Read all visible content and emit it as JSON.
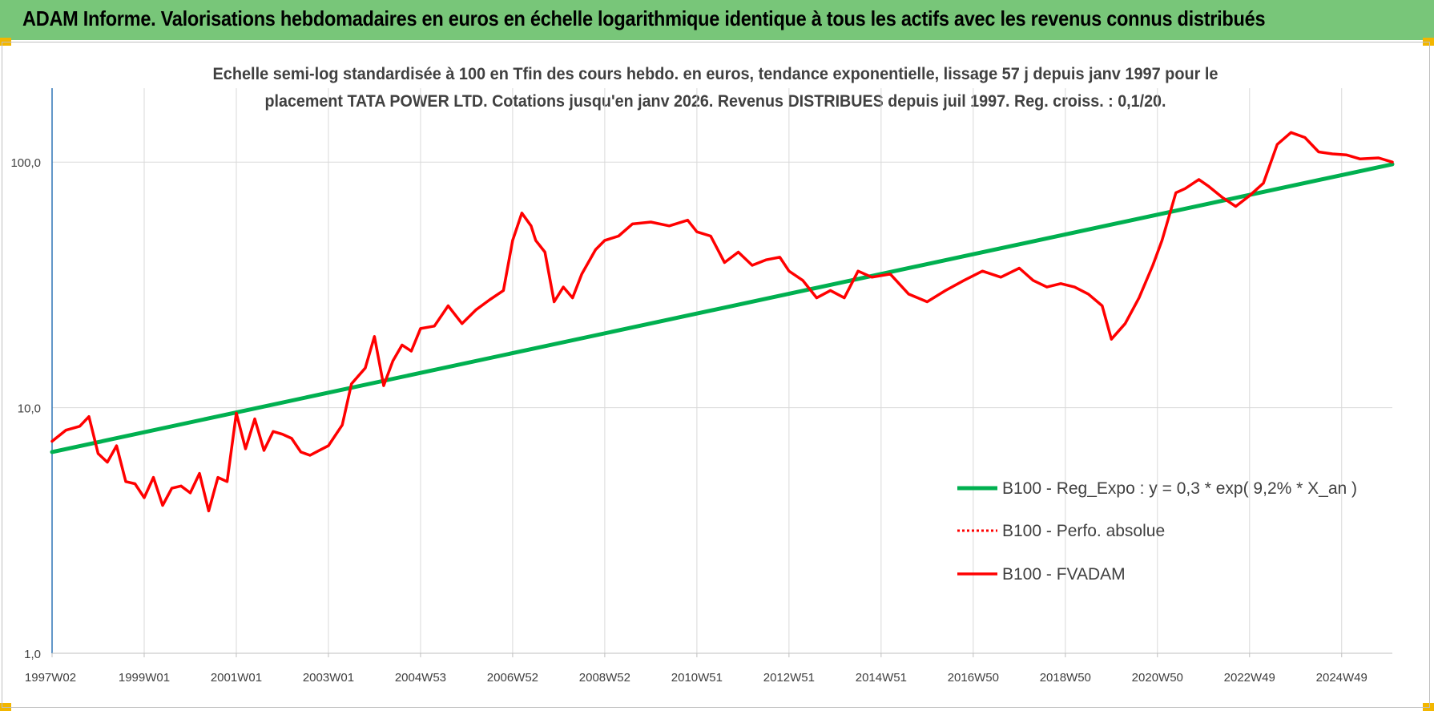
{
  "header": {
    "title": "ADAM Informe. Valorisations hebdomadaires en euros en échelle logarithmique identique à tous les actifs avec les revenus connus distribués"
  },
  "colors": {
    "header_bg": "#78c679",
    "regression_line": "#00b050",
    "price_line": "#ff0000",
    "axis": "#2e75b6",
    "grid": "#d9d9d9",
    "text": "#404040",
    "accent_corner": "#f2b600"
  },
  "chart_data": {
    "type": "line",
    "title_line1": "Echelle semi-log standardisée à 100 en Tfin des cours hebdo. en euros, tendance exponentielle, lissage 57 j depuis janv 1997 pour le",
    "title_line2": "placement TATA  POWER LTD. Cotations jusqu'en janv 2026. Revenus DISTRIBUES depuis juil 1997. Reg. croiss. : 0,1/20.",
    "yscale": "log",
    "ylim": [
      1,
      200
    ],
    "yticks": [
      1,
      10,
      100
    ],
    "ytick_labels": [
      "1,0",
      "10,0",
      "100,0"
    ],
    "xlim": [
      1997.0,
      2026.1
    ],
    "xticks": [
      1997.0,
      1999.0,
      2001.0,
      2003.0,
      2005.0,
      2007.0,
      2009.0,
      2011.0,
      2013.0,
      2015.0,
      2017.0,
      2019.0,
      2021.0,
      2023.0,
      2025.0
    ],
    "xtick_labels": [
      "1997W02",
      "1999W01",
      "2001W01",
      "2003W01",
      "2004W53",
      "2006W52",
      "2008W52",
      "2010W51",
      "2012W51",
      "2014W51",
      "2016W50",
      "2018W50",
      "2020W50",
      "2022W49",
      "2024W49"
    ],
    "grid": true,
    "legend_position": "bottom-right",
    "legend": [
      "B100 - Reg_Expo : y = 0,3 * exp( 9,2% *  X_an )",
      "B100 - Perfo. absolue",
      "B100 - FVADAM"
    ],
    "series": [
      {
        "name": "B100 - Reg_Expo : y = 0,3 * exp( 9,2% *  X_an )",
        "style": "solid-green",
        "x": [
          1997.0,
          2026.1
        ],
        "values": [
          6.6,
          98
        ]
      },
      {
        "name": "B100 - Perfo. absolue",
        "style": "dotted-red",
        "x": [],
        "values": []
      },
      {
        "name": "B100 - FVADAM",
        "style": "solid-red",
        "x": [
          1997.0,
          1997.3,
          1997.6,
          1997.8,
          1998.0,
          1998.2,
          1998.4,
          1998.6,
          1998.8,
          1999.0,
          1999.2,
          1999.4,
          1999.6,
          1999.8,
          2000.0,
          2000.2,
          2000.4,
          2000.6,
          2000.8,
          2001.0,
          2001.2,
          2001.4,
          2001.6,
          2001.8,
          2002.0,
          2002.2,
          2002.4,
          2002.6,
          2002.8,
          2003.0,
          2003.3,
          2003.5,
          2003.8,
          2004.0,
          2004.2,
          2004.4,
          2004.6,
          2004.8,
          2005.0,
          2005.3,
          2005.6,
          2005.9,
          2006.2,
          2006.5,
          2006.8,
          2007.0,
          2007.2,
          2007.4,
          2007.5,
          2007.7,
          2007.9,
          2008.1,
          2008.3,
          2008.5,
          2008.8,
          2009.0,
          2009.3,
          2009.6,
          2010.0,
          2010.4,
          2010.8,
          2011.0,
          2011.3,
          2011.6,
          2011.9,
          2012.2,
          2012.5,
          2012.8,
          2013.0,
          2013.3,
          2013.6,
          2013.9,
          2014.2,
          2014.5,
          2014.8,
          2015.2,
          2015.6,
          2016.0,
          2016.4,
          2016.8,
          2017.2,
          2017.6,
          2018.0,
          2018.3,
          2018.6,
          2018.9,
          2019.2,
          2019.5,
          2019.8,
          2020.0,
          2020.3,
          2020.6,
          2020.9,
          2021.1,
          2021.4,
          2021.6,
          2021.9,
          2022.1,
          2022.4,
          2022.7,
          2023.0,
          2023.3,
          2023.6,
          2023.9,
          2024.2,
          2024.5,
          2024.8,
          2025.1,
          2025.4,
          2025.8,
          2026.1
        ],
        "values": [
          7.3,
          8.1,
          8.4,
          9.2,
          6.5,
          6.0,
          7.0,
          5.0,
          4.9,
          4.3,
          5.2,
          4.0,
          4.7,
          4.8,
          4.5,
          5.4,
          3.8,
          5.2,
          5.0,
          9.5,
          6.8,
          9.0,
          6.7,
          8.0,
          7.8,
          7.5,
          6.6,
          6.4,
          6.7,
          7.0,
          8.5,
          12.5,
          14.5,
          19.5,
          12.3,
          15.5,
          18.0,
          17.0,
          21.0,
          21.5,
          26.0,
          22.0,
          25.0,
          27.5,
          30.0,
          48.0,
          62.0,
          55.0,
          48.0,
          43.0,
          27.0,
          31.0,
          28.0,
          35.0,
          44.0,
          48.0,
          50.0,
          56.0,
          57.0,
          55.0,
          58.0,
          52.0,
          50.0,
          39.0,
          43.0,
          38.0,
          40.0,
          41.0,
          36.0,
          33.0,
          28.0,
          30.0,
          28.0,
          36.0,
          34.0,
          35.0,
          29.0,
          27.0,
          30.0,
          33.0,
          36.0,
          34.0,
          37.0,
          33.0,
          31.0,
          32.0,
          31.0,
          29.0,
          26.0,
          19.0,
          22.0,
          28.0,
          38.0,
          48.0,
          75.0,
          78.0,
          85.0,
          80.0,
          72.0,
          66.0,
          73.0,
          82.0,
          118.0,
          132.0,
          126.0,
          110.0,
          108.0,
          107.0,
          103.0,
          104.0,
          100.0
        ]
      }
    ]
  }
}
